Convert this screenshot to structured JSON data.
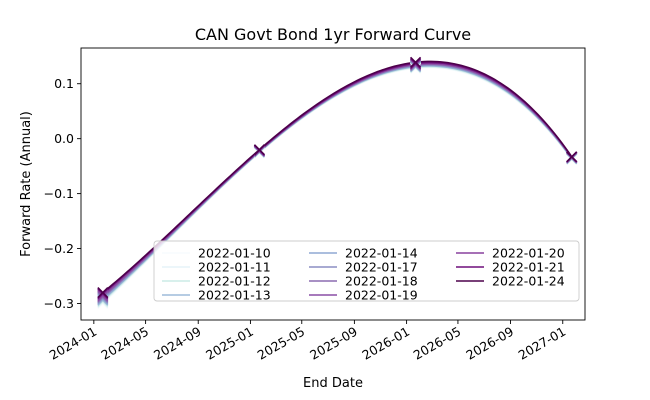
{
  "chart_data": {
    "type": "line",
    "title": "CAN Govt Bond 1yr Forward Curve",
    "xlabel": "End Date",
    "ylabel": "Forward Rate (Annual)",
    "x_axis": {
      "kind": "date",
      "range": [
        "2023-12-02",
        "2027-02-22"
      ],
      "tick_labels": [
        "2024-01",
        "2024-05",
        "2024-09",
        "2025-01",
        "2025-05",
        "2025-09",
        "2026-01",
        "2026-05",
        "2026-09",
        "2027-01"
      ]
    },
    "y_axis": {
      "range": [
        -0.33,
        0.165
      ],
      "ticks": [
        -0.3,
        -0.2,
        -0.1,
        0.0,
        0.1
      ],
      "tick_labels": [
        "−0.3",
        "−0.2",
        "−0.1",
        "0.0",
        "0.1"
      ]
    },
    "grid": false,
    "legend": {
      "placement": "lower-center",
      "columns": 3
    },
    "marker_x": [
      "2024-01-22",
      "2025-01-22",
      "2026-01-22",
      "2027-01-22"
    ],
    "series": [
      {
        "name": "2022-01-10",
        "color": "#f7fcfd",
        "values": [
          -0.3,
          -0.026,
          0.128,
          -0.038
        ]
      },
      {
        "name": "2022-01-11",
        "color": "#e5f4f8",
        "values": [
          -0.298,
          -0.025,
          0.129,
          -0.037
        ]
      },
      {
        "name": "2022-01-12",
        "color": "#ccece6",
        "values": [
          -0.296,
          -0.025,
          0.13,
          -0.037
        ]
      },
      {
        "name": "2022-01-13",
        "color": "#9ebcda",
        "values": [
          -0.294,
          -0.024,
          0.131,
          -0.036
        ]
      },
      {
        "name": "2022-01-14",
        "color": "#8fa9d3",
        "values": [
          -0.292,
          -0.024,
          0.132,
          -0.036
        ]
      },
      {
        "name": "2022-01-17",
        "color": "#8c8dc3",
        "values": [
          -0.29,
          -0.023,
          0.133,
          -0.035
        ]
      },
      {
        "name": "2022-01-18",
        "color": "#8c6bb1",
        "values": [
          -0.288,
          -0.023,
          0.134,
          -0.035
        ]
      },
      {
        "name": "2022-01-19",
        "color": "#8a4fa5",
        "values": [
          -0.286,
          -0.022,
          0.135,
          -0.034
        ]
      },
      {
        "name": "2022-01-20",
        "color": "#88419d",
        "values": [
          -0.284,
          -0.022,
          0.136,
          -0.034
        ]
      },
      {
        "name": "2022-01-21",
        "color": "#6e0f7c",
        "values": [
          -0.282,
          -0.021,
          0.137,
          -0.033
        ]
      },
      {
        "name": "2022-01-24",
        "color": "#4d004b",
        "values": [
          -0.28,
          -0.02,
          0.139,
          -0.033
        ]
      }
    ]
  }
}
